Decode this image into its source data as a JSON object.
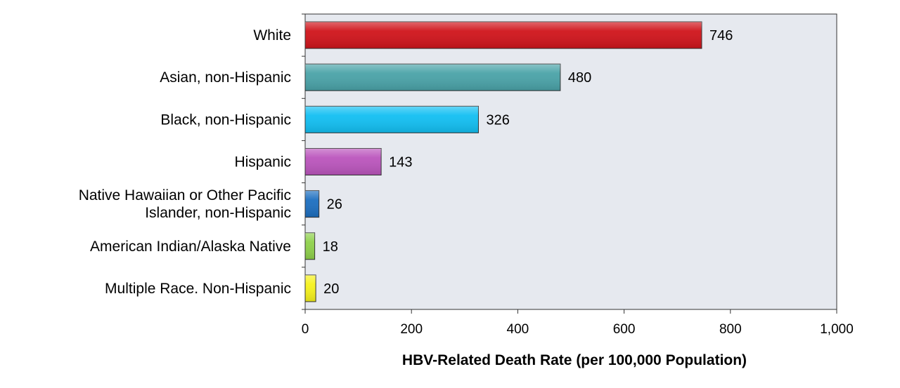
{
  "chart_data": {
    "type": "bar",
    "orientation": "horizontal",
    "categories": [
      [
        "White"
      ],
      [
        "Asian, non-Hispanic"
      ],
      [
        "Black, non-Hispanic"
      ],
      [
        "Hispanic"
      ],
      [
        "Native Hawaiian or Other Pacific",
        "Islander, non-Hispanic"
      ],
      [
        "American Indian/Alaska Native"
      ],
      [
        "Multiple Race. Non-Hispanic"
      ]
    ],
    "values": [
      746,
      480,
      326,
      143,
      26,
      18,
      20
    ],
    "value_labels": [
      "746",
      "480",
      "326",
      "143",
      "26",
      "18",
      "20"
    ],
    "bar_colors": [
      "#d0141b",
      "#4aa3a8",
      "#12bff2",
      "#bb55bd",
      "#1d6fc0",
      "#8fd14b",
      "#f6f21c"
    ],
    "xlabel": "HBV-Related Death Rate (per 100,000 Population)",
    "ylabel": "",
    "xlim": [
      0,
      1000
    ],
    "xticks": [
      0,
      200,
      400,
      600,
      800,
      1000
    ],
    "xtick_labels": [
      "0",
      "200",
      "400",
      "600",
      "800",
      "1,000"
    ],
    "plot_background": "#e6e9ef",
    "grid": false
  }
}
